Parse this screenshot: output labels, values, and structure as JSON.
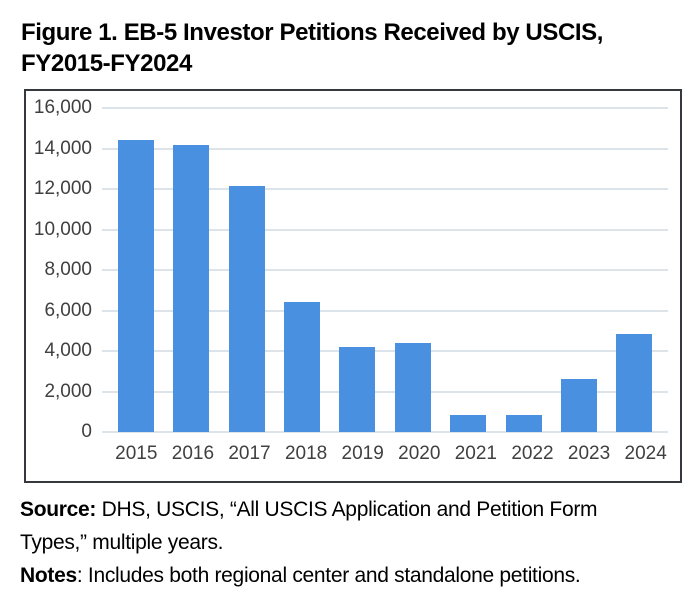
{
  "figure": {
    "title_line1": "Figure 1. EB-5 Investor Petitions Received by USCIS,",
    "title_line2": "FY2015-FY2024"
  },
  "chart_data": {
    "type": "bar",
    "title": "Figure 1. EB-5 Investor Petitions Received by USCIS, FY2015-FY2024",
    "categories": [
      "2015",
      "2016",
      "2017",
      "2018",
      "2019",
      "2020",
      "2021",
      "2022",
      "2023",
      "2024"
    ],
    "values": [
      14400,
      14150,
      12150,
      6400,
      4200,
      4400,
      820,
      820,
      2600,
      4850
    ],
    "xlabel": "",
    "ylabel": "",
    "ylim": [
      0,
      16000
    ],
    "ytick_step": 2000,
    "ytick_labels": [
      "0",
      "2,000",
      "4,000",
      "6,000",
      "8,000",
      "10,000",
      "12,000",
      "14,000",
      "16,000"
    ],
    "grid": true,
    "legend": "none",
    "bar_color": "#4a90e0",
    "gridline_color": "#dce3e9",
    "axis_label_color": "#404040",
    "plot_border_color": "#35393d"
  },
  "footer": {
    "source_label": "Source:",
    "source_text_line1_rest": " DHS, USCIS, “All USCIS Application and Petition Form",
    "source_text_line2": "Types,” multiple years.",
    "notes_label": "Notes",
    "notes_text_rest": ": Includes both regional center and standalone petitions."
  }
}
